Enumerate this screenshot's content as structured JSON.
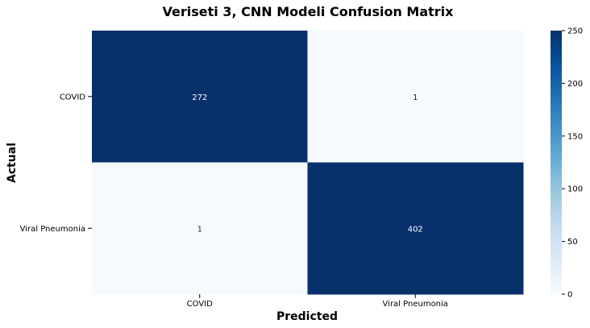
{
  "chart_data": {
    "type": "heatmap",
    "title": "Veriseti 3, CNN Modeli Confusion Matrix",
    "xlabel": "Predicted",
    "ylabel": "Actual",
    "x_categories": [
      "COVID",
      "Viral Pneumonia"
    ],
    "y_categories": [
      "COVID",
      "Viral Pneumonia"
    ],
    "values": [
      [
        272,
        1
      ],
      [
        1,
        402
      ]
    ],
    "colorbar": {
      "min": 0,
      "max": 250,
      "ticks": [
        0,
        50,
        100,
        150,
        200,
        250
      ],
      "colormap": "Blues"
    },
    "colors": {
      "low": "#f7fbff",
      "high": "#08306b",
      "text_on_dark": "#ffffff",
      "text_on_light": "#262626"
    }
  }
}
